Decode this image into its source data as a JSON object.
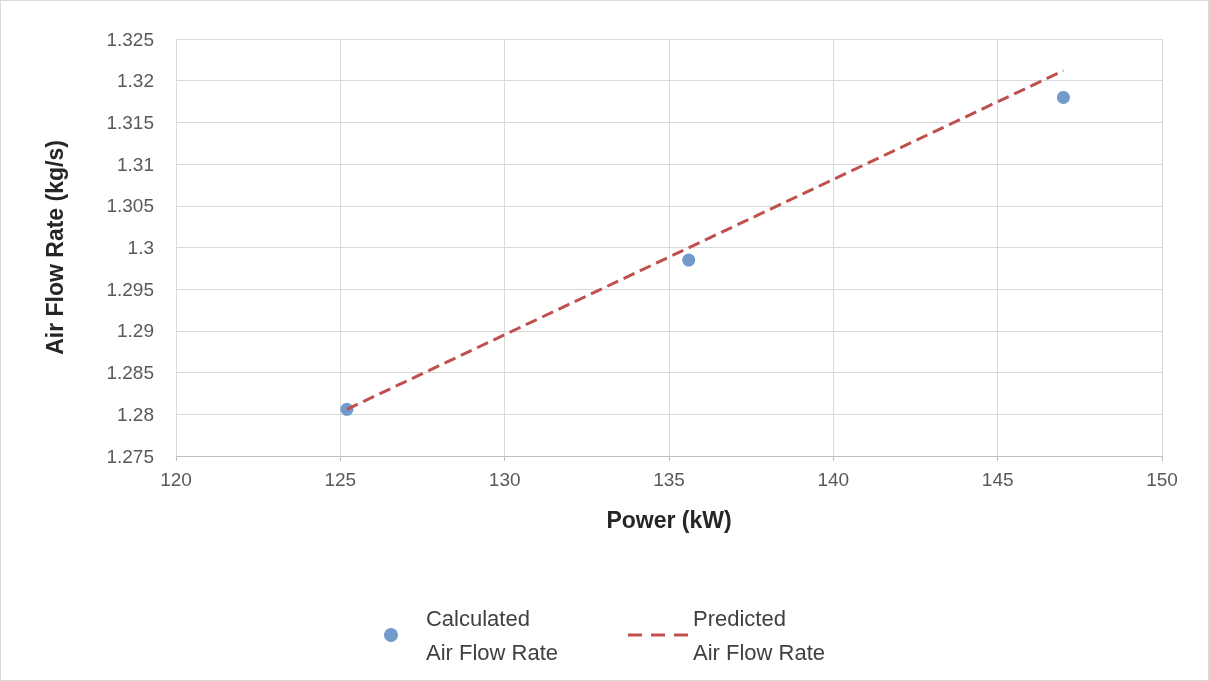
{
  "chart_data": {
    "type": "scatter",
    "xlabel": "Power (kW)",
    "ylabel": "Air Flow Rate (kg/s)",
    "xlim": [
      120,
      150
    ],
    "xticks": [
      120,
      125,
      130,
      135,
      140,
      145,
      150
    ],
    "ylim": [
      1.275,
      1.325
    ],
    "yticks": [
      1.275,
      1.28,
      1.285,
      1.29,
      1.295,
      1.3,
      1.305,
      1.31,
      1.315,
      1.32,
      1.325
    ],
    "grid": true,
    "legend": "bottom",
    "marker": "circle",
    "series": [
      {
        "name": "Calculated Air Flow Rate",
        "color": "#4f81bd",
        "x": [
          125.2,
          135.6,
          147.0
        ],
        "values": [
          1.2806,
          1.2985,
          1.318
        ]
      },
      {
        "name": "Predicted Air Flow Rate",
        "type": "line",
        "color": "#c0504d",
        "line_style": "dashed",
        "marker": "none",
        "x": [
          125.2,
          147.0
        ],
        "values": [
          1.2806,
          1.3212
        ]
      }
    ]
  }
}
